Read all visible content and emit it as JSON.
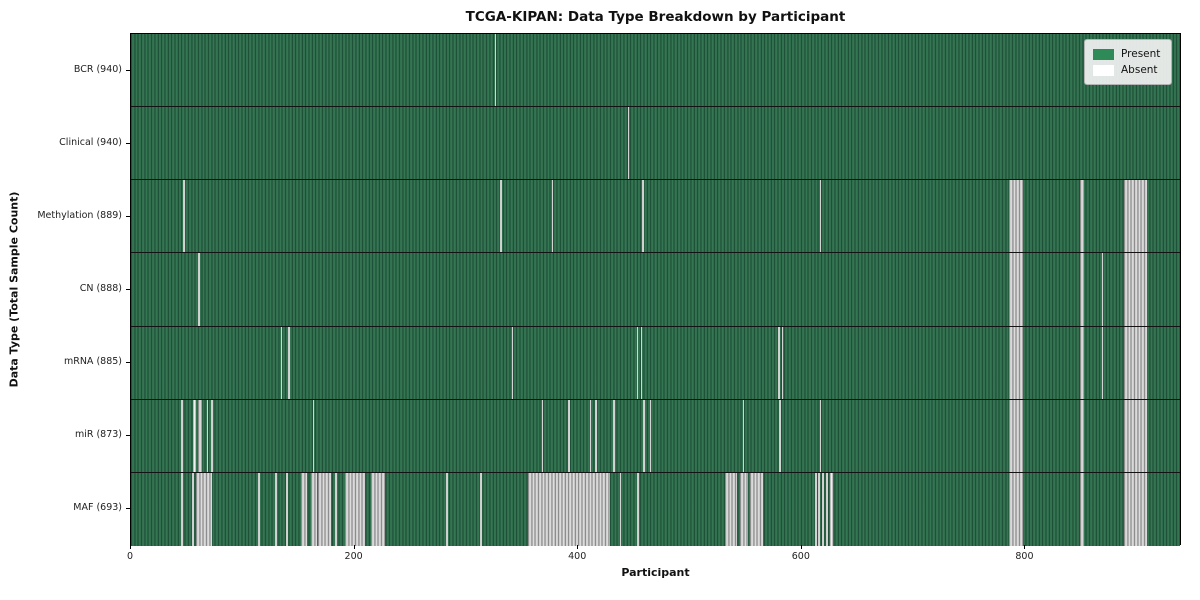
{
  "chart_data": {
    "type": "heatmap",
    "title": "TCGA-KIPAN: Data Type Breakdown by Participant",
    "xlabel": "Participant",
    "ylabel": "Data Type (Total Sample Count)",
    "xlim": [
      0,
      940
    ],
    "x_ticks": [
      0,
      200,
      400,
      600,
      800
    ],
    "grid": false,
    "present_color": "#2e6b4c",
    "absent_color": "#c8c8c8",
    "legend": {
      "position": "upper right",
      "entries": [
        {
          "label": "Present",
          "color": "#2e8b57"
        },
        {
          "label": "Absent",
          "color": "#ffffff"
        }
      ]
    },
    "rows": [
      {
        "label": "BCR (940)",
        "data_type": "BCR",
        "total_samples": 940,
        "absent_stripes": [
          [
            326,
            1.3
          ]
        ]
      },
      {
        "label": "Clinical (940)",
        "data_type": "Clinical",
        "total_samples": 940,
        "absent_stripes": [
          [
            445,
            1.3
          ]
        ]
      },
      {
        "label": "Methylation (889)",
        "data_type": "Methylation",
        "total_samples": 889,
        "absent_stripes": [
          [
            47,
            1.3
          ],
          [
            331,
            1.3
          ],
          [
            377,
            1.3
          ],
          [
            458,
            1.3
          ],
          [
            617,
            1.3
          ],
          [
            787,
            12
          ],
          [
            850,
            4
          ],
          [
            890,
            20
          ]
        ]
      },
      {
        "label": "CN (888)",
        "data_type": "CN",
        "total_samples": 888,
        "absent_stripes": [
          [
            60,
            2
          ],
          [
            787,
            12
          ],
          [
            850,
            4
          ],
          [
            870,
            1.3
          ],
          [
            890,
            20
          ]
        ]
      },
      {
        "label": "mRNA (885)",
        "data_type": "mRNA",
        "total_samples": 885,
        "absent_stripes": [
          [
            134,
            1.3
          ],
          [
            141,
            1.3
          ],
          [
            341,
            1.3
          ],
          [
            453,
            1.3
          ],
          [
            457,
            1.3
          ],
          [
            580,
            1.3
          ],
          [
            583,
            1.3
          ],
          [
            787,
            12
          ],
          [
            850,
            4
          ],
          [
            870,
            1.3
          ],
          [
            890,
            20
          ]
        ]
      },
      {
        "label": "miR (873)",
        "data_type": "miR",
        "total_samples": 873,
        "absent_stripes": [
          [
            45,
            1.3
          ],
          [
            56,
            2
          ],
          [
            60,
            4
          ],
          [
            68,
            1
          ],
          [
            72,
            1.3
          ],
          [
            163,
            1.3
          ],
          [
            368,
            1.3
          ],
          [
            392,
            1.3
          ],
          [
            411,
            1.3
          ],
          [
            416,
            1.3
          ],
          [
            432,
            1.3
          ],
          [
            459,
            1.3
          ],
          [
            465,
            1.3
          ],
          [
            548,
            1.3
          ],
          [
            581,
            1.3
          ],
          [
            617,
            1.3
          ],
          [
            787,
            12
          ],
          [
            850,
            4
          ],
          [
            890,
            20
          ]
        ]
      },
      {
        "label": "MAF (693)",
        "data_type": "MAF",
        "total_samples": 693,
        "absent_stripes": [
          [
            45,
            1.3
          ],
          [
            55,
            1.3
          ],
          [
            58,
            15
          ],
          [
            114,
            1.3
          ],
          [
            129,
            2
          ],
          [
            139,
            2
          ],
          [
            152,
            6
          ],
          [
            161,
            6
          ],
          [
            168,
            11
          ],
          [
            183,
            2
          ],
          [
            192,
            18
          ],
          [
            215,
            13
          ],
          [
            282,
            2
          ],
          [
            313,
            1.3
          ],
          [
            356,
            73
          ],
          [
            438,
            1.3
          ],
          [
            453,
            2
          ],
          [
            532,
            11
          ],
          [
            546,
            7
          ],
          [
            555,
            11
          ],
          [
            613,
            1.3
          ],
          [
            616,
            1.3
          ],
          [
            619,
            2
          ],
          [
            623,
            1.3
          ],
          [
            626,
            3
          ],
          [
            787,
            12
          ],
          [
            850,
            4
          ],
          [
            890,
            20
          ]
        ]
      }
    ]
  }
}
